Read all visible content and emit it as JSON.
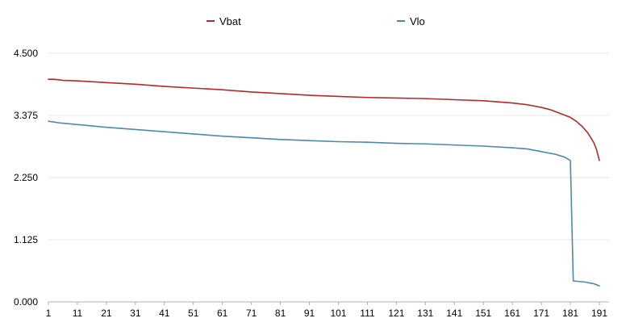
{
  "chart_data": {
    "type": "line",
    "title": "",
    "xlabel": "",
    "ylabel": "",
    "x_range": [
      1,
      191
    ],
    "x_ticks": [
      1,
      11,
      21,
      31,
      41,
      51,
      61,
      71,
      81,
      91,
      101,
      111,
      121,
      131,
      141,
      151,
      161,
      171,
      181,
      191
    ],
    "y_ticks": [
      "0.000",
      "1.125",
      "2.250",
      "3.375",
      "4.500"
    ],
    "ylim": [
      0,
      4.5
    ],
    "grid": "horizontal",
    "legend_position": "top-center",
    "series": [
      {
        "name": "Vbat",
        "color": "#b22a2a",
        "points": [
          [
            1,
            4.03
          ],
          [
            3,
            4.03
          ],
          [
            6,
            4.01
          ],
          [
            11,
            4.0
          ],
          [
            21,
            3.97
          ],
          [
            31,
            3.94
          ],
          [
            41,
            3.9
          ],
          [
            51,
            3.87
          ],
          [
            61,
            3.84
          ],
          [
            71,
            3.8
          ],
          [
            81,
            3.77
          ],
          [
            91,
            3.74
          ],
          [
            101,
            3.72
          ],
          [
            111,
            3.7
          ],
          [
            121,
            3.69
          ],
          [
            131,
            3.68
          ],
          [
            141,
            3.66
          ],
          [
            151,
            3.64
          ],
          [
            161,
            3.6
          ],
          [
            166,
            3.57
          ],
          [
            171,
            3.52
          ],
          [
            174,
            3.48
          ],
          [
            177,
            3.42
          ],
          [
            181,
            3.34
          ],
          [
            183,
            3.27
          ],
          [
            185,
            3.18
          ],
          [
            187,
            3.06
          ],
          [
            189,
            2.89
          ],
          [
            190,
            2.76
          ],
          [
            191,
            2.56
          ]
        ]
      },
      {
        "name": "Vlo",
        "color": "#4a8aaa",
        "points": [
          [
            1,
            3.27
          ],
          [
            5,
            3.24
          ],
          [
            11,
            3.21
          ],
          [
            21,
            3.16
          ],
          [
            31,
            3.12
          ],
          [
            41,
            3.08
          ],
          [
            51,
            3.04
          ],
          [
            61,
            3.0
          ],
          [
            71,
            2.97
          ],
          [
            81,
            2.94
          ],
          [
            91,
            2.92
          ],
          [
            101,
            2.9
          ],
          [
            111,
            2.89
          ],
          [
            121,
            2.87
          ],
          [
            131,
            2.86
          ],
          [
            141,
            2.84
          ],
          [
            151,
            2.82
          ],
          [
            161,
            2.79
          ],
          [
            166,
            2.77
          ],
          [
            171,
            2.72
          ],
          [
            176,
            2.67
          ],
          [
            179,
            2.62
          ],
          [
            180,
            2.59
          ],
          [
            181,
            2.56
          ],
          [
            182,
            0.38
          ],
          [
            186,
            0.36
          ],
          [
            189,
            0.33
          ],
          [
            191,
            0.29
          ]
        ]
      }
    ]
  }
}
